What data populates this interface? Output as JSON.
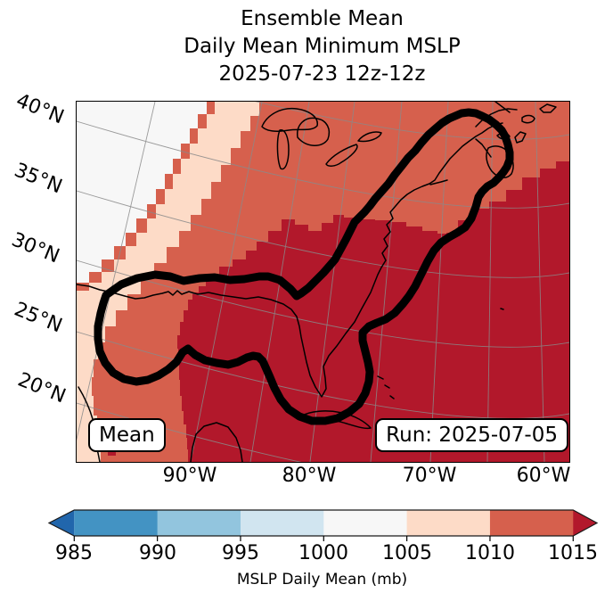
{
  "title": {
    "lines": [
      "Ensemble Mean",
      "Daily Mean Minimum MSLP",
      "2025-07-23 12z-12z"
    ]
  },
  "map": {
    "lat_axis": {
      "labels": [
        "40°N",
        "35°N",
        "30°N",
        "25°N",
        "20°N"
      ]
    },
    "lon_axis": {
      "labels": [
        "90°W",
        "80°W",
        "70°W",
        "60°W"
      ]
    },
    "badges": {
      "mean": "Mean",
      "run": "Run: 2025-07-05"
    },
    "colors": {
      "band_1000_1005": "#f7f7f7",
      "band_1005_1010": "#fddbc7",
      "band_1010_1015": "#d6604d",
      "band_over_1015": "#b2182b",
      "gridline": "#8a8a8a",
      "coastline": "#000000",
      "outline_contour": "#000000"
    }
  },
  "colorbar": {
    "label": "MSLP Daily Mean (mb)",
    "tick_labels": [
      "985",
      "990",
      "995",
      "1000",
      "1005",
      "1010",
      "1015"
    ],
    "tick_values": [
      985,
      990,
      995,
      1000,
      1005,
      1010,
      1015
    ],
    "segments": [
      {
        "range": "< 985",
        "color": "#2166ac"
      },
      {
        "range": "985-990",
        "color": "#4393c3"
      },
      {
        "range": "990-995",
        "color": "#92c5de"
      },
      {
        "range": "995-1000",
        "color": "#d1e5f0"
      },
      {
        "range": "1000-1005",
        "color": "#f7f7f7"
      },
      {
        "range": "1005-1010",
        "color": "#fddbc7"
      },
      {
        "range": "1010-1015",
        "color": "#d6604d"
      },
      {
        "range": "> 1015",
        "color": "#b2182b"
      }
    ],
    "outline_color": "#1a1a1a"
  },
  "chart_data": {
    "type": "heatmap",
    "subtype": "filled-contour-geographic-map",
    "title": "Ensemble Mean Daily Mean Minimum MSLP 2025-07-23 12z-12z",
    "field": "MSLP Daily Mean",
    "units": "mb",
    "levels": [
      985,
      990,
      995,
      1000,
      1005,
      1010,
      1015
    ],
    "colormap_colors": [
      "#2166ac",
      "#4393c3",
      "#92c5de",
      "#d1e5f0",
      "#f7f7f7",
      "#fddbc7",
      "#d6604d",
      "#b2182b"
    ],
    "lat_ticks_deg_north": [
      20,
      25,
      30,
      35,
      40
    ],
    "lon_ticks_deg_west": [
      90,
      80,
      70,
      60
    ],
    "visible_bands": [
      {
        "band": "1000-1005 mb",
        "location": "far northwest corner of map"
      },
      {
        "band": "1005-1010 mb",
        "location": "diagonal band along northwest edge and lower-left edge"
      },
      {
        "band": "1010-1015 mb",
        "location": "broad band over Great Lakes, Northeast US and Canadian Maritimes down to Texas"
      },
      {
        "band": "over 1015 mb",
        "location": "Gulf of Mexico, Caribbean and western Atlantic (southeast half of map)"
      }
    ],
    "annotations": [
      "Thick black closed contour enclosing the Gulf of Mexico coast and the US East Coast up to Nova Scotia",
      "Mean",
      "Run: 2025-07-05"
    ]
  }
}
